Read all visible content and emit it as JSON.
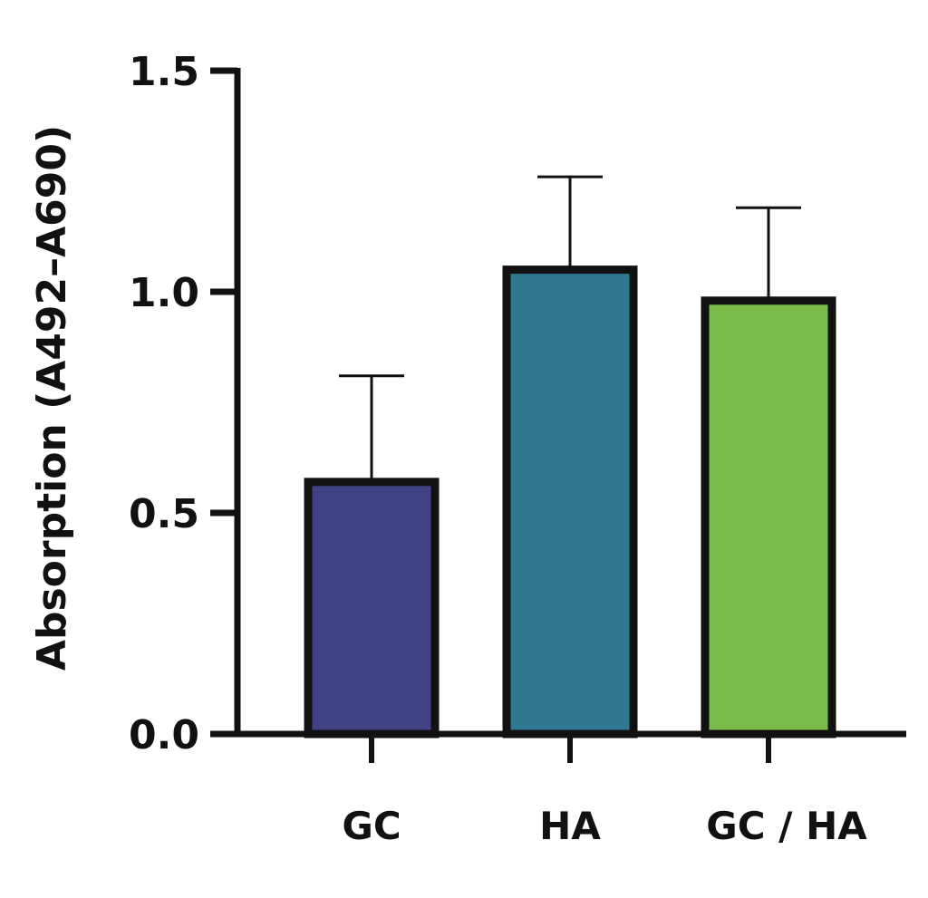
{
  "chart_data": {
    "type": "bar",
    "categories": [
      "GC",
      "HA",
      "GC / HA"
    ],
    "values": [
      0.57,
      1.05,
      0.98
    ],
    "errors": [
      0.24,
      0.21,
      0.21
    ],
    "colors": [
      "#414285",
      "#2e7891",
      "#79bc4a"
    ],
    "ylabel": "Absorption (A492–A690)",
    "ylim": [
      0,
      1.5
    ],
    "yticks": [
      "0.0",
      "0.5",
      "1.0",
      "1.5"
    ],
    "ytick_values": [
      0,
      0.5,
      1.0,
      1.5
    ],
    "grid": false
  }
}
